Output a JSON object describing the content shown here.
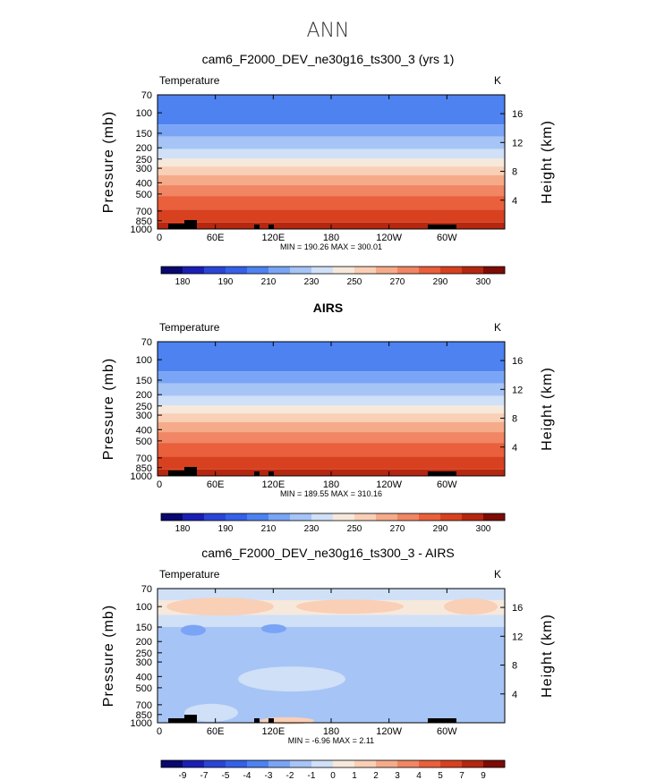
{
  "main_title": "ANN",
  "chart_data": [
    {
      "type": "contour",
      "title": "cam6_F2000_DEV_ne30g16_ts300_3 (yrs 1)",
      "variable": "Temperature",
      "units": "K",
      "ylabel_left": "Pressure (mb)",
      "ylabel_right": "Height (km)",
      "pressure_ticks": [
        "70",
        "100",
        "150",
        "200",
        "250",
        "300",
        "400",
        "500",
        "700",
        "850",
        "1000"
      ],
      "height_ticks": [
        "16",
        "12",
        "8",
        "4"
      ],
      "lon_ticks": [
        "0",
        "60E",
        "120E",
        "180",
        "120W",
        "60W"
      ],
      "stats": "MIN = 190.26   MAX = 300.01",
      "colorbar_labels": [
        "180",
        "190",
        "210",
        "230",
        "250",
        "270",
        "290",
        "300"
      ],
      "colors": [
        "#08086e",
        "#1a1fb4",
        "#2a45d6",
        "#3560e8",
        "#4d82f0",
        "#7aa4f5",
        "#a7c4f6",
        "#cfe0f7",
        "#f7e8dc",
        "#f9cfb6",
        "#f5ab8a",
        "#f08663",
        "#ea5f3c",
        "#d8411f",
        "#b52710",
        "#7c0c05"
      ]
    },
    {
      "type": "contour",
      "title": "AIRS",
      "variable": "Temperature",
      "units": "K",
      "ylabel_left": "Pressure (mb)",
      "ylabel_right": "Height (km)",
      "pressure_ticks": [
        "70",
        "100",
        "150",
        "200",
        "250",
        "300",
        "400",
        "500",
        "700",
        "850",
        "1000"
      ],
      "height_ticks": [
        "16",
        "12",
        "8",
        "4"
      ],
      "lon_ticks": [
        "0",
        "60E",
        "120E",
        "180",
        "120W",
        "60W"
      ],
      "stats": "MIN = 189.55   MAX = 310.16",
      "colorbar_labels": [
        "180",
        "190",
        "210",
        "230",
        "250",
        "270",
        "290",
        "300"
      ],
      "colors": [
        "#08086e",
        "#1a1fb4",
        "#2a45d6",
        "#3560e8",
        "#4d82f0",
        "#7aa4f5",
        "#a7c4f6",
        "#cfe0f7",
        "#f7e8dc",
        "#f9cfb6",
        "#f5ab8a",
        "#f08663",
        "#ea5f3c",
        "#d8411f",
        "#b52710",
        "#7c0c05"
      ]
    },
    {
      "type": "contour",
      "title": "cam6_F2000_DEV_ne30g16_ts300_3 - AIRS",
      "variable": "Temperature",
      "units": "K",
      "ylabel_left": "Pressure (mb)",
      "ylabel_right": "Height (km)",
      "pressure_ticks": [
        "70",
        "100",
        "150",
        "200",
        "250",
        "300",
        "400",
        "500",
        "700",
        "850",
        "1000"
      ],
      "height_ticks": [
        "16",
        "12",
        "8",
        "4"
      ],
      "lon_ticks": [
        "0",
        "60E",
        "120E",
        "180",
        "120W",
        "60W"
      ],
      "stats": "MIN =   -6.96   MAX =     2.11",
      "colorbar_labels": [
        "-9",
        "-7",
        "-5",
        "-4",
        "-3",
        "-2",
        "-1",
        "0",
        "1",
        "2",
        "3",
        "4",
        "5",
        "7",
        "9"
      ],
      "colors": [
        "#08086e",
        "#1a1fb4",
        "#2a45d6",
        "#3560e8",
        "#4d82f0",
        "#7aa4f5",
        "#a7c4f6",
        "#cfe0f7",
        "#f7e8dc",
        "#f9cfb6",
        "#f5ab8a",
        "#f08663",
        "#ea5f3c",
        "#d8411f",
        "#b52710",
        "#7c0c05"
      ]
    }
  ]
}
